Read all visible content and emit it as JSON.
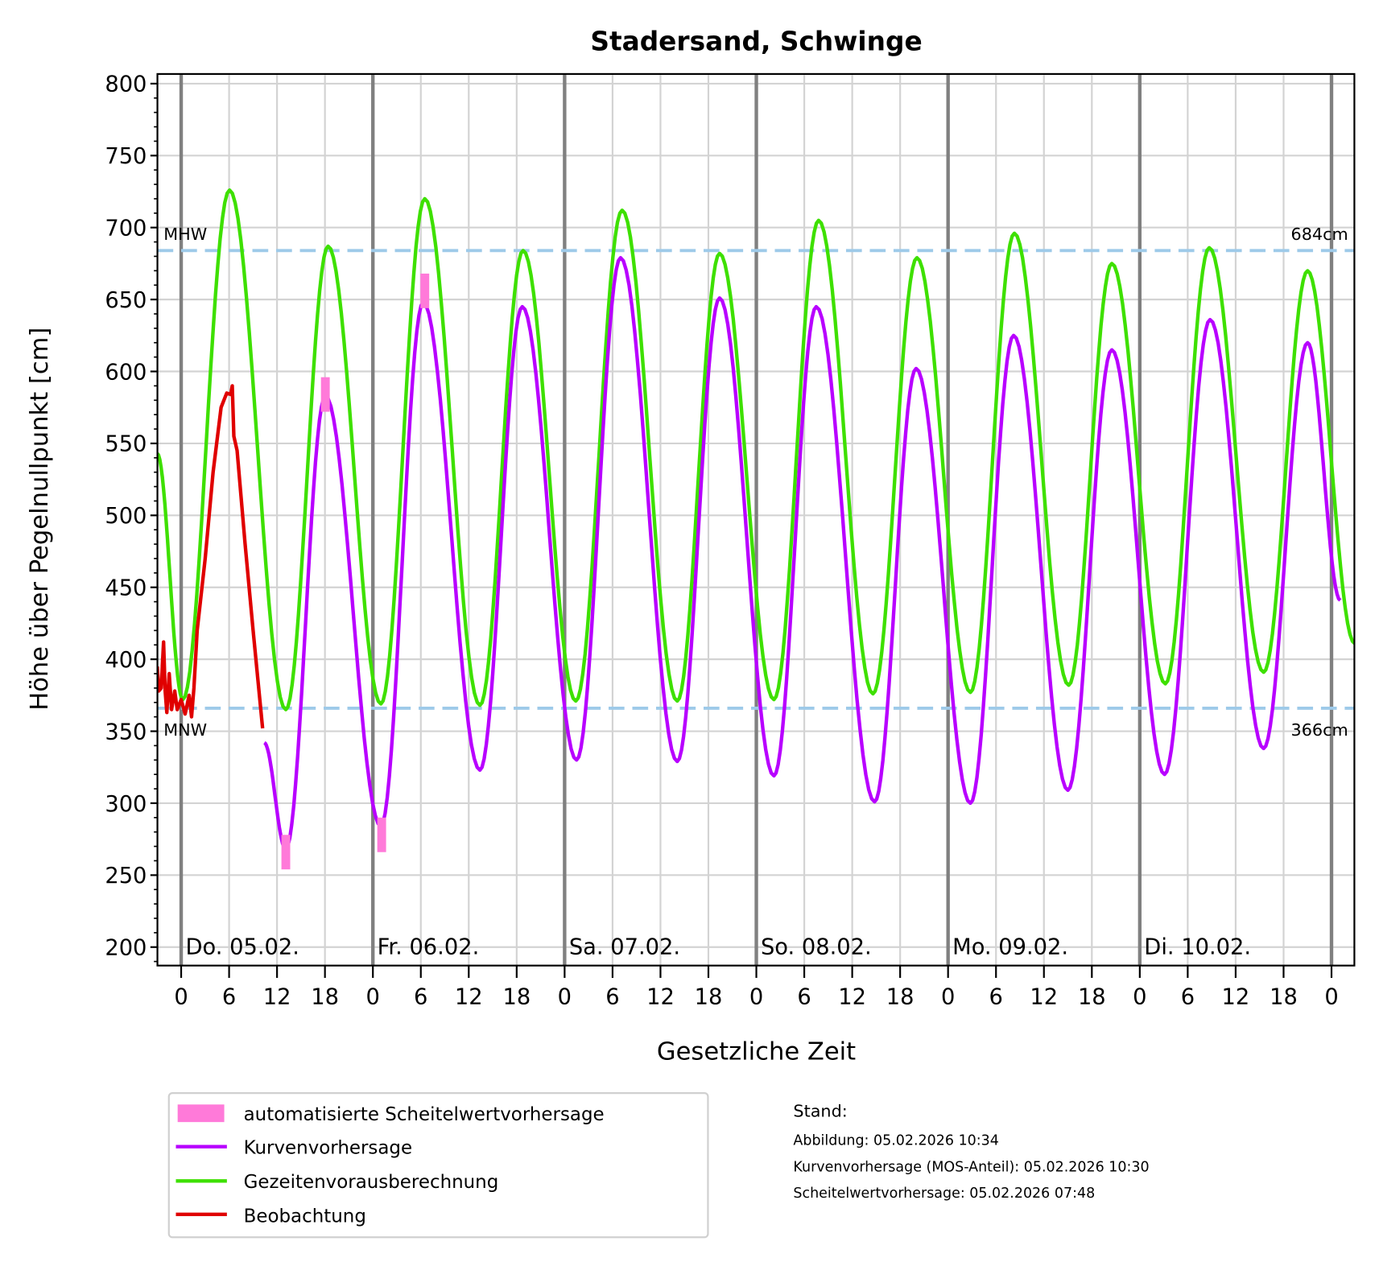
{
  "chart_data": {
    "type": "line",
    "title": "Stadersand, Schwinge",
    "xlabel": "Gesetzliche Zeit",
    "ylabel": "Höhe über Pegelnullpunkt [cm]",
    "ylim": [
      188,
      805
    ],
    "xlim_hours": [
      -3,
      147
    ],
    "yticks": [
      200,
      250,
      300,
      350,
      400,
      450,
      500,
      550,
      600,
      650,
      700,
      750,
      800
    ],
    "xtick_hours": [
      0,
      6,
      12,
      18
    ],
    "days": [
      "Do. 05.02.",
      "Fr. 06.02.",
      "Sa. 07.02.",
      "So. 08.02.",
      "Mo. 09.02.",
      "Di. 10.02."
    ],
    "reference_lines": [
      {
        "name": "MHW",
        "value": 684,
        "label": "684cm"
      },
      {
        "name": "MNW",
        "value": 366,
        "label": "366cm"
      }
    ],
    "grid": true,
    "legend_placement": "bottom-left",
    "series": [
      {
        "name": "Gezeitenvorausberechnung",
        "color": "#3ee000",
        "interp": "cosine",
        "extrema": [
          [
            -3,
            543
          ],
          [
            0.2,
            372
          ],
          [
            6.05,
            726
          ],
          [
            13.1,
            365
          ],
          [
            18.4,
            687
          ],
          [
            25.0,
            369
          ],
          [
            30.5,
            720
          ],
          [
            37.4,
            368
          ],
          [
            42.8,
            684
          ],
          [
            49.4,
            371
          ],
          [
            55.2,
            712
          ],
          [
            62.1,
            371
          ],
          [
            67.4,
            682
          ],
          [
            74.2,
            372
          ],
          [
            79.8,
            705
          ],
          [
            86.6,
            376
          ],
          [
            92.1,
            679
          ],
          [
            98.8,
            377
          ],
          [
            104.3,
            696
          ],
          [
            111.1,
            382
          ],
          [
            116.5,
            675
          ],
          [
            123.2,
            383
          ],
          [
            128.7,
            686
          ],
          [
            135.5,
            391
          ],
          [
            141.0,
            670
          ],
          [
            146.9,
            411
          ]
        ]
      },
      {
        "name": "Kurvenvorhersage",
        "color": "#b800ff",
        "interp": "cosine",
        "extrema": [
          [
            10.4,
            342
          ],
          [
            13.1,
            268
          ],
          [
            18.05,
            583
          ],
          [
            25.0,
            284
          ],
          [
            30.3,
            648
          ],
          [
            37.4,
            323
          ],
          [
            42.7,
            645
          ],
          [
            49.5,
            330
          ],
          [
            55.0,
            679
          ],
          [
            62.1,
            329
          ],
          [
            67.4,
            651
          ],
          [
            74.2,
            319
          ],
          [
            79.5,
            645
          ],
          [
            86.8,
            301
          ],
          [
            92.0,
            602
          ],
          [
            98.8,
            300
          ],
          [
            104.2,
            625
          ],
          [
            111.0,
            309
          ],
          [
            116.5,
            615
          ],
          [
            123.1,
            320
          ],
          [
            128.8,
            636
          ],
          [
            135.5,
            338
          ],
          [
            141.0,
            620
          ],
          [
            145.1,
            441
          ]
        ]
      },
      {
        "name": "Beobachtung",
        "color": "#e00000",
        "interp": "linear",
        "points": [
          [
            -3,
            395
          ],
          [
            -2.8,
            378
          ],
          [
            -2.5,
            380
          ],
          [
            -2.2,
            412
          ],
          [
            -2,
            378
          ],
          [
            -1.8,
            363
          ],
          [
            -1.5,
            390
          ],
          [
            -1.2,
            365
          ],
          [
            -0.8,
            378
          ],
          [
            -0.5,
            365
          ],
          [
            0,
            372
          ],
          [
            0.5,
            362
          ],
          [
            1,
            375
          ],
          [
            1.3,
            360
          ],
          [
            1.6,
            380
          ],
          [
            2,
            420
          ],
          [
            3,
            470
          ],
          [
            4,
            530
          ],
          [
            5,
            575
          ],
          [
            5.7,
            585
          ],
          [
            6.2,
            584
          ],
          [
            6.4,
            590
          ],
          [
            6.6,
            555
          ],
          [
            7,
            545
          ],
          [
            8,
            480
          ],
          [
            9,
            420
          ],
          [
            10.2,
            352
          ]
        ]
      },
      {
        "name": "automatisierte Scheitelwertvorhersage",
        "color": "#ff7ad9",
        "type": "bar-markers",
        "points": [
          [
            13.1,
            266
          ],
          [
            18.05,
            584
          ],
          [
            25.1,
            278
          ],
          [
            30.5,
            656
          ]
        ]
      }
    ]
  },
  "legend": [
    "automatisierte Scheitelwertvorhersage",
    "Kurvenvorhersage",
    "Gezeitenvorausberechnung",
    "Beobachtung"
  ],
  "stand": {
    "heading": "Stand:",
    "abbildung": "Abbildung: 05.02.2026 10:34",
    "kurven": "Kurvenvorhersage (MOS-Anteil): 05.02.2026 10:30",
    "scheitel": "Scheitelwertvorhersage: 05.02.2026 07:48"
  }
}
